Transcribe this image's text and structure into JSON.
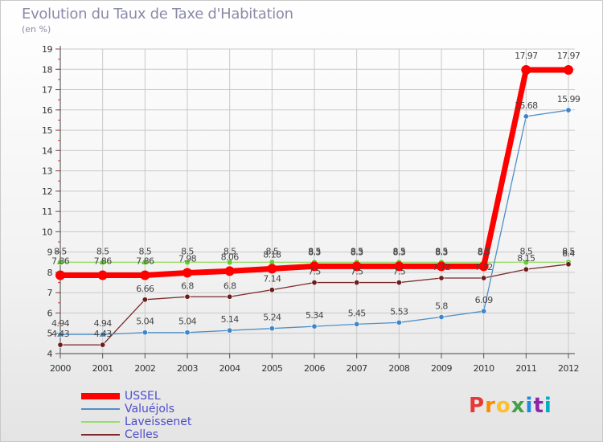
{
  "title": "Evolution du Taux de Taxe d'Habitation",
  "unit_label": "(en %)",
  "brand": {
    "letters": [
      "P",
      "r",
      "o",
      "x",
      "i",
      "t",
      "i"
    ],
    "colors": [
      "#e53935",
      "#fb8c00",
      "#fbc02d",
      "#43a047",
      "#1e88e5",
      "#8e24aa",
      "#00acc1"
    ]
  },
  "chart_data": {
    "type": "line",
    "x": [
      "2000",
      "2001",
      "2002",
      "2003",
      "2004",
      "2005",
      "2006",
      "2007",
      "2008",
      "2009",
      "2010",
      "2011",
      "2012"
    ],
    "ylim": [
      4,
      19
    ],
    "yticks": [
      4,
      5,
      6,
      7,
      8,
      9,
      10,
      11,
      12,
      13,
      14,
      15,
      16,
      17,
      18,
      19
    ],
    "grid": true,
    "legend_position": "bottom-left",
    "series": [
      {
        "name": "USSEL",
        "color": "#ff0000",
        "values": [
          7.86,
          7.86,
          7.86,
          7.98,
          8.06,
          8.18,
          8.3,
          8.3,
          8.3,
          8.3,
          8.3,
          17.97,
          17.97
        ],
        "labels": [
          "7.86",
          "7.86",
          "7.86",
          "7.98",
          "8.06",
          "8.18",
          "8.3",
          "8.3",
          "8.3",
          "8.3",
          "8.3",
          "17.97",
          "17.97"
        ]
      },
      {
        "name": "Valuéjols",
        "color": "#4f8fc9",
        "values": [
          4.94,
          4.94,
          5.04,
          5.04,
          5.14,
          5.24,
          5.34,
          5.45,
          5.53,
          5.8,
          6.09,
          15.68,
          15.99
        ],
        "labels": [
          "4.94",
          "4.94",
          "5.04",
          "5.04",
          "5.14",
          "5.24",
          "5.34",
          "5.45",
          "5.53",
          "5.8",
          "6.09",
          "15.68",
          "15.99"
        ]
      },
      {
        "name": "Laveissenet",
        "color": "#99dd66",
        "values": [
          8.5,
          8.5,
          8.5,
          8.5,
          8.5,
          8.5,
          8.5,
          8.5,
          8.5,
          8.5,
          8.5,
          8.5,
          8.5
        ],
        "labels": [
          "8.5",
          "8.5",
          "8.5",
          "8.5",
          "8.5",
          "8.5",
          "8.5",
          "8.5",
          "8.5",
          "8.5",
          "8.5",
          "8.5",
          "8.5"
        ]
      },
      {
        "name": "Celles",
        "color": "#7a2a2a",
        "values": [
          4.43,
          4.43,
          6.66,
          6.8,
          6.8,
          7.14,
          7.5,
          7.5,
          7.5,
          7.72,
          7.72,
          8.15,
          8.4
        ],
        "labels": [
          "4.43",
          "4.43",
          "6.66",
          "6.8",
          "6.8",
          "7.14",
          "7.5",
          "7.5",
          "7.5",
          "7.72",
          "7.72",
          "8.15",
          "8.4"
        ]
      }
    ]
  }
}
